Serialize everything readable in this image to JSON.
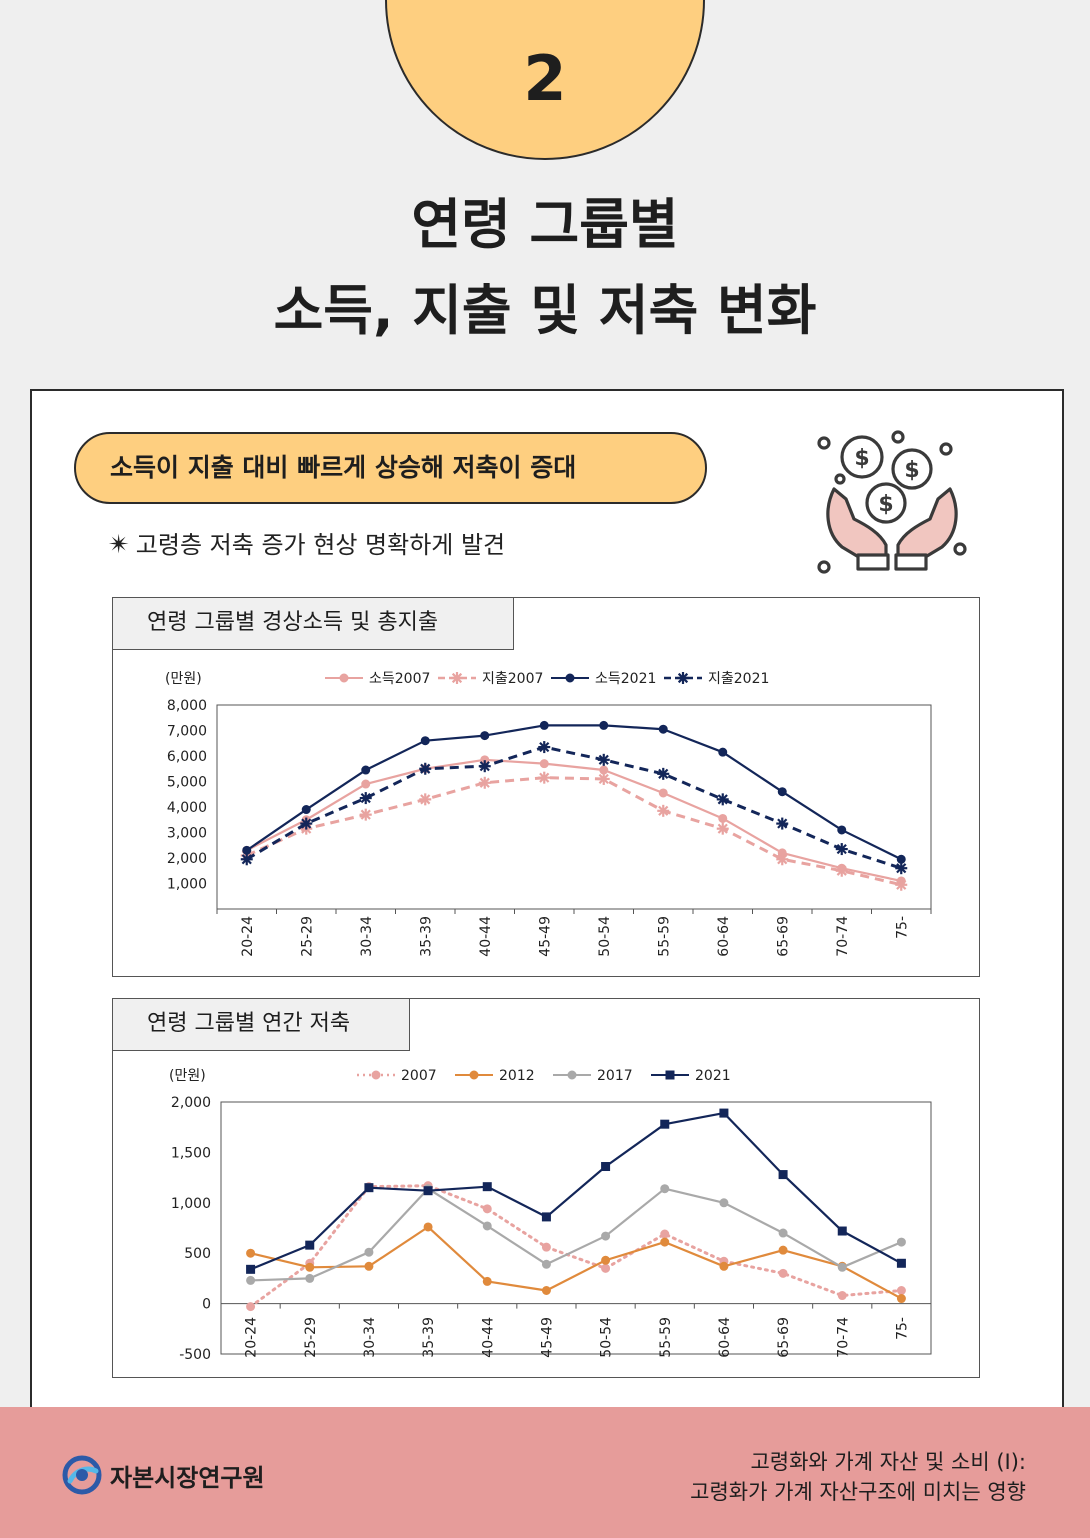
{
  "section_number": "2",
  "title": {
    "line1": "연령 그룹별",
    "line2": "소득, 지출 및 저축 변화"
  },
  "headline": "소득이 지출 대비 빠르게 상승해 저축이 증대",
  "note": {
    "symbol": "✴",
    "text": "고령층 저축 증가 현상 명확하게 발견"
  },
  "icons": {
    "illustration": "coins-in-hands-icon",
    "logo": "institute-logo-icon"
  },
  "colors": {
    "accent": "#fecf80",
    "footer": "#e69c9a",
    "pink": "#e8a3a0",
    "navy": "#132659",
    "orange": "#e08a3c",
    "gray": "#a9a9a9"
  },
  "chart_data": [
    {
      "type": "line",
      "title": "연령 그룹별 경상소득 및 총지출",
      "ylabel": "(만원)",
      "ylim": [
        0,
        8000
      ],
      "yticks": [
        "8,000",
        "7,000",
        "6,000",
        "5,000",
        "4,000",
        "3,000",
        "2,000",
        "1,000"
      ],
      "ytick_values": [
        8000,
        7000,
        6000,
        5000,
        4000,
        3000,
        2000,
        1000
      ],
      "categories": [
        "20-24",
        "25-29",
        "30-34",
        "35-39",
        "40-44",
        "45-49",
        "50-54",
        "55-59",
        "60-64",
        "65-69",
        "70-74",
        "75-"
      ],
      "legend_position": "top",
      "series": [
        {
          "name": "소득2007",
          "color": "#e8a3a0",
          "dash": false,
          "marker": "circle",
          "values": [
            2300,
            3500,
            4900,
            5500,
            5850,
            5700,
            5450,
            4550,
            3550,
            2200,
            1600,
            1100
          ]
        },
        {
          "name": "지출2007",
          "color": "#e8a3a0",
          "dash": true,
          "marker": "star",
          "values": [
            2100,
            3150,
            3700,
            4300,
            4950,
            5150,
            5100,
            3850,
            3150,
            1950,
            1500,
            950
          ]
        },
        {
          "name": "소득2021",
          "color": "#132659",
          "dash": false,
          "marker": "circle",
          "values": [
            2300,
            3900,
            5450,
            6600,
            6800,
            7200,
            7200,
            7050,
            6150,
            4600,
            3100,
            1950
          ]
        },
        {
          "name": "지출2021",
          "color": "#132659",
          "dash": true,
          "marker": "star",
          "values": [
            1950,
            3350,
            4350,
            5500,
            5600,
            6350,
            5850,
            5300,
            4300,
            3350,
            2350,
            1600
          ]
        }
      ]
    },
    {
      "type": "line",
      "title": "연령 그룹별 연간 저축",
      "ylabel": "(만원)",
      "ylim": [
        -500,
        2000
      ],
      "yticks": [
        "2,000",
        "1,500",
        "1,000",
        "500",
        "0",
        "-500"
      ],
      "ytick_values": [
        2000,
        1500,
        1000,
        500,
        0,
        -500
      ],
      "categories": [
        "20-24",
        "25-29",
        "30-34",
        "35-39",
        "40-44",
        "45-49",
        "50-54",
        "55-59",
        "60-64",
        "65-69",
        "70-74",
        "75-"
      ],
      "legend_position": "top",
      "series": [
        {
          "name": "2007",
          "color": "#e8a3a0",
          "dash": true,
          "marker": "circle",
          "values": [
            -30,
            400,
            1160,
            1170,
            940,
            560,
            350,
            690,
            420,
            300,
            80,
            130
          ]
        },
        {
          "name": "2012",
          "color": "#e08a3c",
          "dash": false,
          "marker": "circle",
          "values": [
            500,
            360,
            370,
            760,
            220,
            130,
            430,
            610,
            370,
            530,
            370,
            50
          ]
        },
        {
          "name": "2017",
          "color": "#a9a9a9",
          "dash": false,
          "marker": "circle",
          "values": [
            230,
            250,
            510,
            1140,
            770,
            390,
            670,
            1140,
            1000,
            700,
            360,
            610
          ]
        },
        {
          "name": "2021",
          "color": "#132659",
          "dash": false,
          "marker": "square",
          "values": [
            340,
            580,
            1150,
            1120,
            1160,
            860,
            1360,
            1780,
            1890,
            1280,
            720,
            400
          ]
        }
      ]
    }
  ],
  "footer": {
    "logo_text": "자본시장연구원",
    "report_line1": "고령화와 가계 자산 및 소비 (I):",
    "report_line2": "고령화가 가계 자산구조에 미치는 영향"
  }
}
